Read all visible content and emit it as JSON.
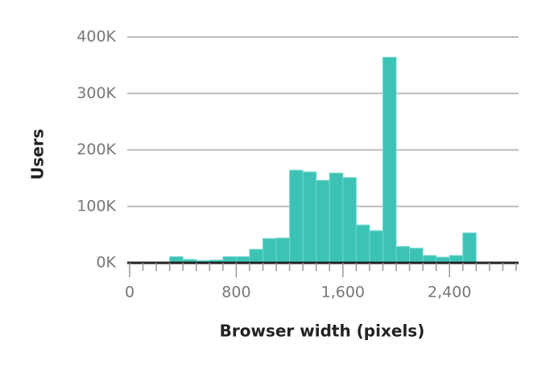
{
  "chart_data": {
    "type": "histogram",
    "x_label": "Browser width (pixels)",
    "y_label": "Users",
    "bins": [
      300,
      400,
      500,
      600,
      700,
      800,
      900,
      1000,
      1100,
      1200,
      1300,
      1400,
      1500,
      1600,
      1700,
      1800,
      1900,
      2000,
      2100,
      2200,
      2300,
      2400,
      2500,
      2600
    ],
    "values": [
      11000,
      6000,
      4000,
      5000,
      11000,
      11000,
      24000,
      43000,
      44000,
      164000,
      161000,
      146000,
      159000,
      151000,
      67000,
      57000,
      364000,
      29000,
      26000,
      13000,
      10000,
      13000,
      53000
    ],
    "color": "#3cc3b6",
    "xlim": [
      0,
      2900
    ],
    "xticks": [
      0,
      800,
      {
        "value": 1600,
        "label": "1,600"
      },
      {
        "value": 2400,
        "label": "2,400"
      }
    ],
    "xminorticks": [
      100,
      200,
      300,
      400,
      500,
      600,
      700,
      900,
      1000,
      1100,
      1200,
      1300,
      1400,
      1500,
      1700,
      1800,
      1900,
      2000,
      2100,
      2200,
      2300,
      2500,
      2600,
      2700,
      2800,
      2900
    ],
    "ylim": [
      0,
      400000
    ],
    "yticks": [
      {
        "value": 0,
        "label": "0K"
      },
      {
        "value": 100000,
        "label": "100K"
      },
      {
        "value": 200000,
        "label": "200K"
      },
      {
        "value": 300000,
        "label": "300K"
      },
      {
        "value": 400000,
        "label": "400K"
      }
    ],
    "grid": true
  }
}
